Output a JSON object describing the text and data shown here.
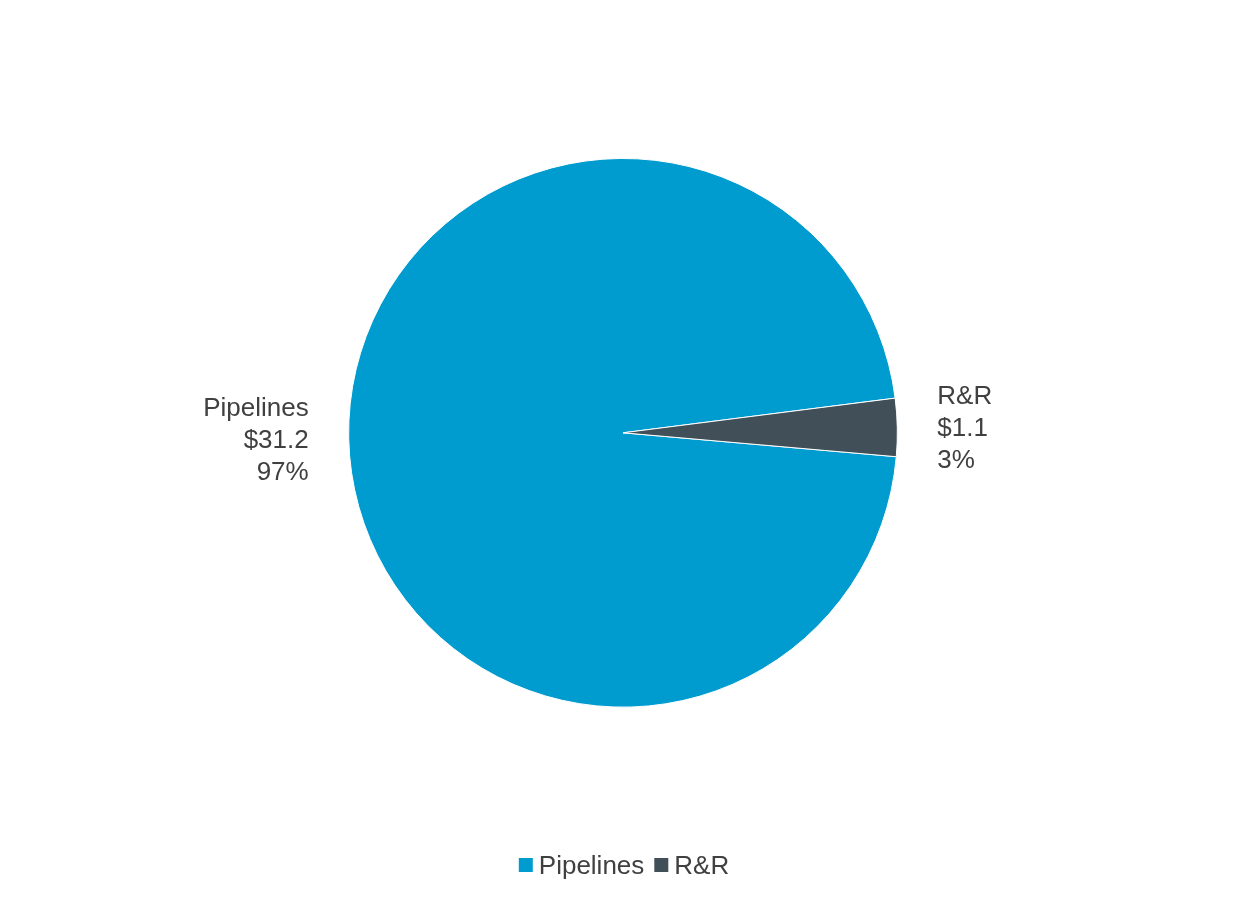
{
  "chart_data": {
    "type": "pie",
    "categories": [
      "Pipelines",
      "R&R"
    ],
    "values": [
      31.2,
      1.1
    ],
    "colors": [
      "#009ccf",
      "#404f58"
    ],
    "value_labels": [
      "$31.2\n97%",
      "$1.1\n3%"
    ],
    "legend": "bottom"
  }
}
